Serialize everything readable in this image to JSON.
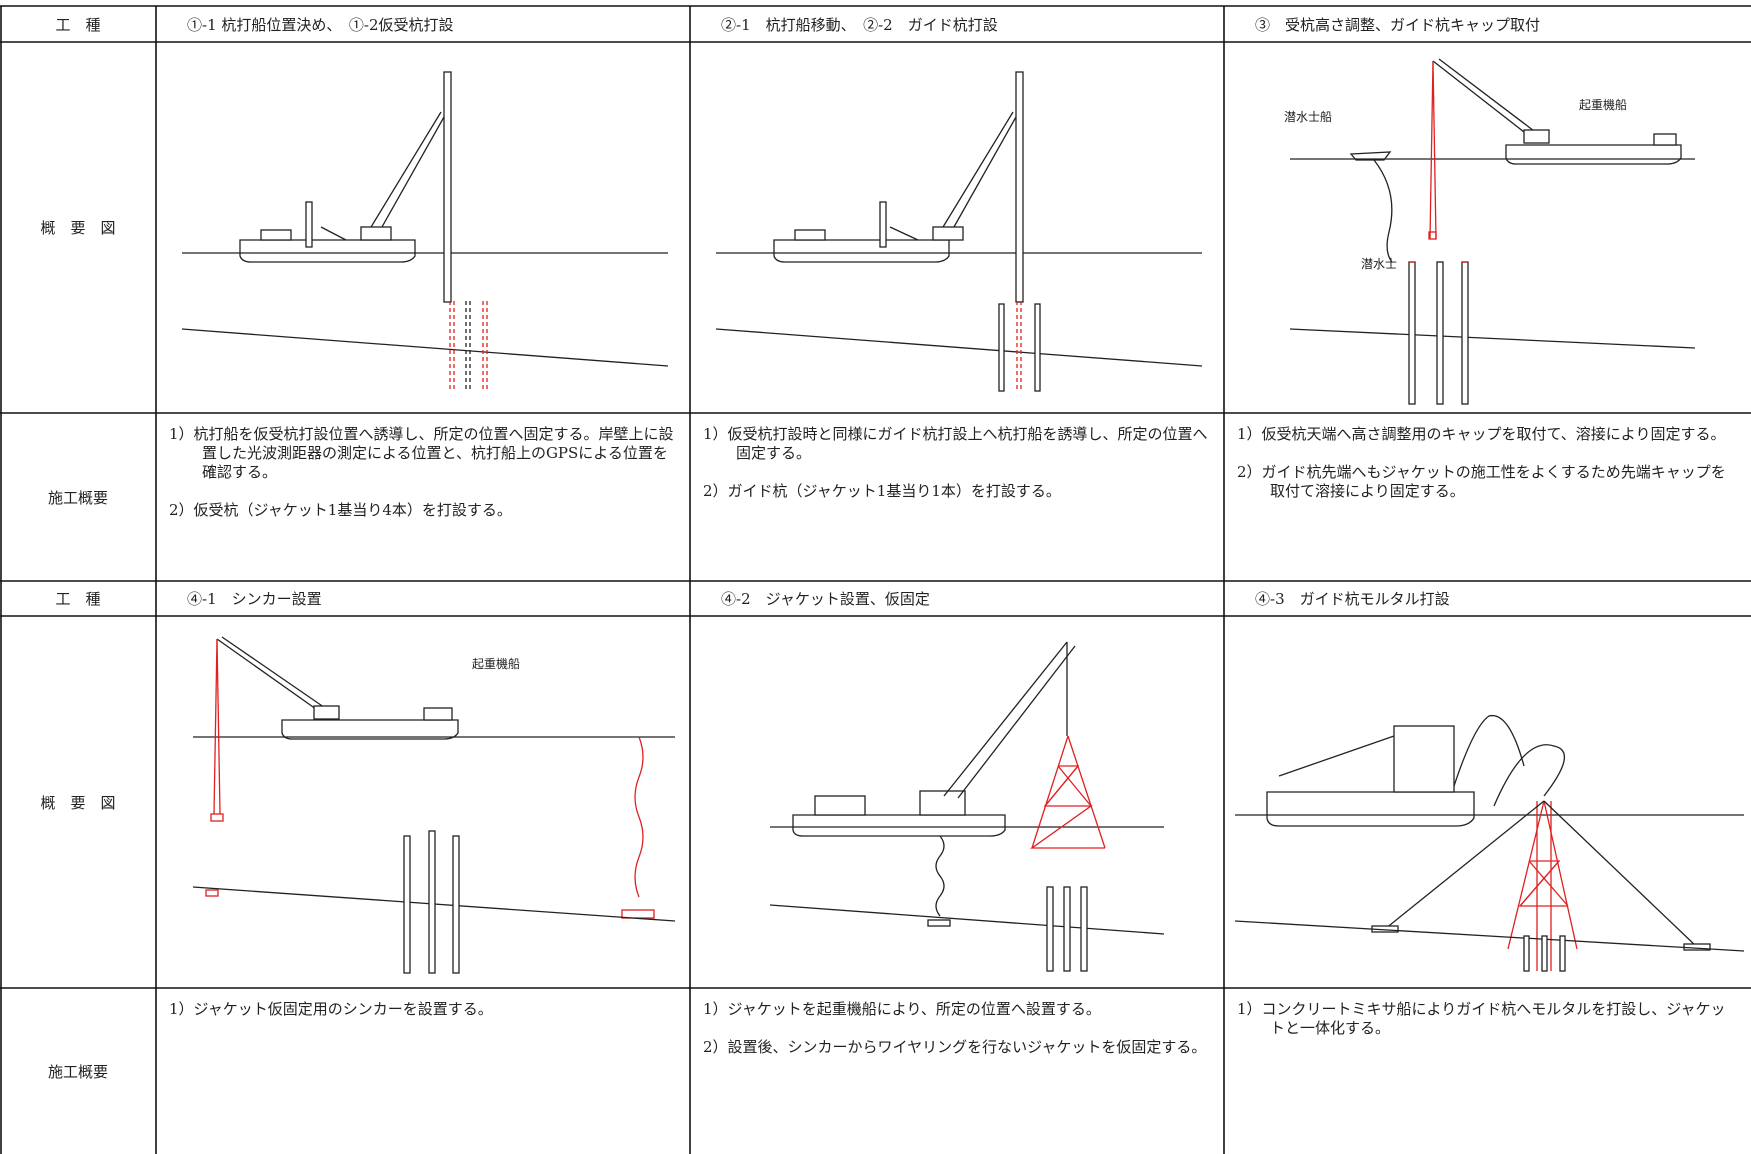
{
  "rows": [
    {
      "header_label": "工　種",
      "overview_label": "概　要　図",
      "summary_label": "施工概要",
      "panels": [
        {
          "title": "①-1 杭打船位置決め、　①-2仮受杭打設",
          "items": [
            "1）杭打船を仮受杭打設位置へ誘導し、所定の位置へ固定する。岸壁上に設置した光波測距器の測定による位置と、杭打船上のGPSによる位置を確認する。",
            "2）仮受杭（ジャケット1基当り4本）を打設する。"
          ]
        },
        {
          "title": "②-1　杭打船移動、　②-2　ガイド杭打設",
          "items": [
            "1）仮受杭打設時と同様にガイド杭打設上へ杭打船を誘導し、所定の位置へ固定する。",
            "2）ガイド杭（ジャケット1基当り1本）を打設する。"
          ]
        },
        {
          "title": "③　受杭高さ調整、ガイド杭キャップ取付",
          "labels": [
            "潜水士船",
            "起重機船",
            "潜水士"
          ],
          "items": [
            "1）仮受杭天端へ高さ調整用のキャップを取付て、溶接により固定する。",
            "2）ガイド杭先端へもジャケットの施工性をよくするため先端キャップを取付て溶接により固定する。"
          ]
        }
      ]
    },
    {
      "header_label": "工　種",
      "overview_label": "概　要　図",
      "summary_label": "施工概要",
      "panels": [
        {
          "title": "④-1　シンカー設置",
          "labels": [
            "起重機船"
          ],
          "items": [
            "1）ジャケット仮固定用のシンカーを設置する。"
          ]
        },
        {
          "title": "④-2　ジャケット設置、仮固定",
          "items": [
            "1）ジャケットを起重機船により、所定の位置へ設置する。",
            "2）設置後、シンカーからワイヤリングを行ないジャケットを仮固定する。"
          ]
        },
        {
          "title": "④-3　ガイド杭モルタル打設",
          "items": [
            "1）コンクリートミキサ船によりガイド杭へモルタルを打設し、ジャケットと一体化する。"
          ]
        }
      ]
    }
  ]
}
